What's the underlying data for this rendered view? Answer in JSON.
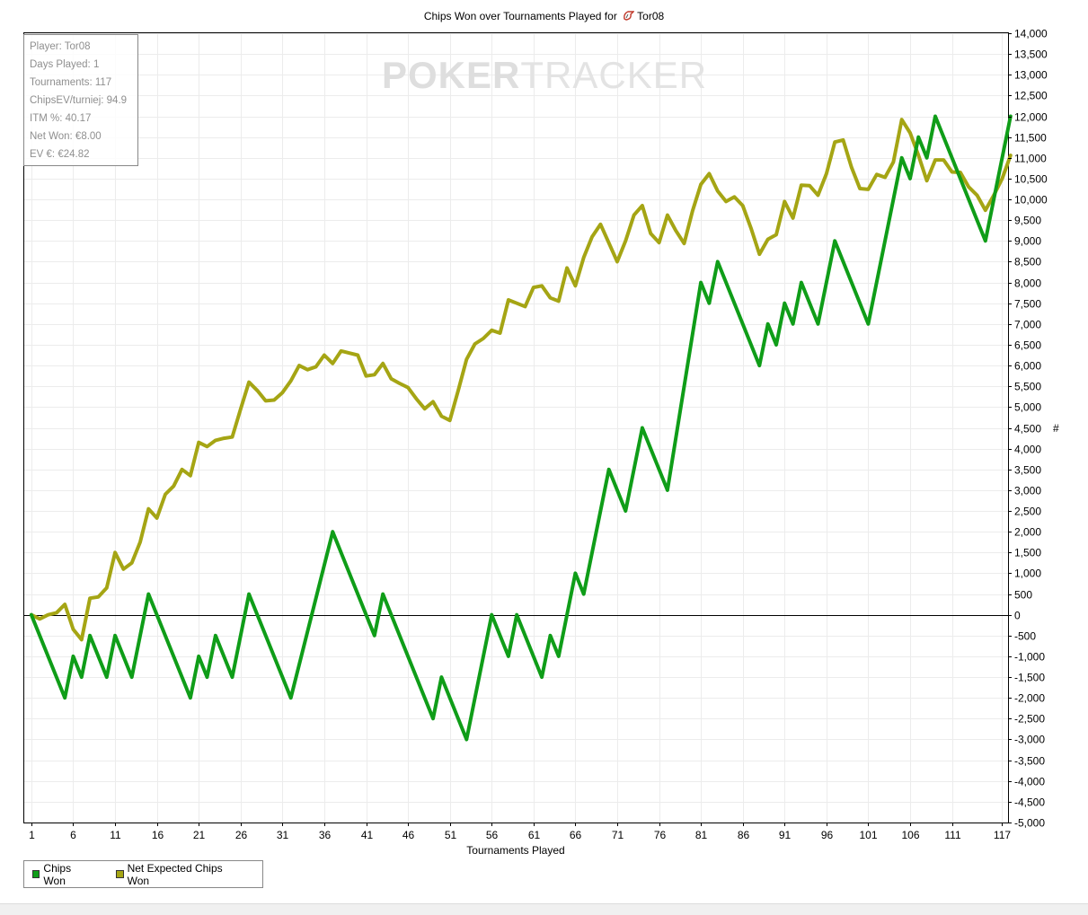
{
  "title": {
    "prefix": "Chips Won over Tournaments Played for",
    "player": "Tor08",
    "icon": "pokerstars-logo-icon"
  },
  "watermark": {
    "part1": "POKER",
    "part2": "TRACKER"
  },
  "stats": [
    "Player: Tor08",
    "Days Played: 1",
    "Tournaments: 117",
    "ChipsEV/turniej: 94.9",
    "ITM %: 40.17",
    "Net Won: €8.00",
    "EV €: €24.82"
  ],
  "legend": [
    {
      "label": "Chips Won",
      "color": "#0f9d18"
    },
    {
      "label": "Net Expected Chips Won",
      "color": "#a5a514"
    }
  ],
  "chart_data": {
    "type": "line",
    "title": "Chips Won over Tournaments Played for Tor08",
    "xlabel": "Tournaments Played",
    "ylabel": "#",
    "xlim": [
      1,
      117
    ],
    "ylim": [
      -5000,
      14000
    ],
    "x_ticks": [
      1,
      6,
      11,
      16,
      21,
      26,
      31,
      36,
      41,
      46,
      51,
      56,
      61,
      66,
      71,
      76,
      81,
      86,
      91,
      96,
      101,
      106,
      111,
      117
    ],
    "y_ticks": [
      -5000,
      -4500,
      -4000,
      -3500,
      -3000,
      -2500,
      -2000,
      -1500,
      -1000,
      -500,
      0,
      500,
      1000,
      1500,
      2000,
      2500,
      3000,
      3500,
      4000,
      4500,
      5000,
      5500,
      6000,
      6500,
      7000,
      7500,
      8000,
      8500,
      9000,
      9500,
      10000,
      10500,
      11000,
      11500,
      12000,
      12500,
      13000,
      13500,
      14000
    ],
    "y_tick_labels": [
      "-5,000",
      "-4,500",
      "-4,000",
      "-3,500",
      "-3,000",
      "-2,500",
      "-2,000",
      "-1,500",
      "-1,000",
      "-500",
      "0",
      "500",
      "1,000",
      "1,500",
      "2,000",
      "2,500",
      "3,000",
      "3,500",
      "4,000",
      "4,500",
      "5,000",
      "5,500",
      "6,000",
      "6,500",
      "7,000",
      "7,500",
      "8,000",
      "8,500",
      "9,000",
      "9,500",
      "10,000",
      "10,500",
      "11,000",
      "11,500",
      "12,000",
      "12,500",
      "13,000",
      "13,500",
      "14,000"
    ],
    "grid": true,
    "legend_position": "bottom-left",
    "series": [
      {
        "name": "Chips Won",
        "color": "#0f9d18",
        "points": [
          [
            1,
            0
          ],
          [
            5,
            -2000
          ],
          [
            6,
            -1000
          ],
          [
            7,
            -1500
          ],
          [
            8,
            -500
          ],
          [
            10,
            -1500
          ],
          [
            11,
            -500
          ],
          [
            13,
            -1500
          ],
          [
            15,
            500
          ],
          [
            20,
            -2000
          ],
          [
            21,
            -1000
          ],
          [
            22,
            -1500
          ],
          [
            23,
            -500
          ],
          [
            25,
            -1500
          ],
          [
            27,
            500
          ],
          [
            32,
            -2000
          ],
          [
            37,
            2000
          ],
          [
            42,
            -500
          ],
          [
            43,
            500
          ],
          [
            49,
            -2500
          ],
          [
            50,
            -1500
          ],
          [
            53,
            -3000
          ],
          [
            56,
            0
          ],
          [
            58,
            -1000
          ],
          [
            59,
            0
          ],
          [
            62,
            -1500
          ],
          [
            63,
            -500
          ],
          [
            64,
            -1000
          ],
          [
            66,
            1000
          ],
          [
            67,
            500
          ],
          [
            70,
            3500
          ],
          [
            72,
            2500
          ],
          [
            74,
            4500
          ],
          [
            77,
            3000
          ],
          [
            81,
            8000
          ],
          [
            82,
            7500
          ],
          [
            83,
            8500
          ],
          [
            88,
            6000
          ],
          [
            89,
            7000
          ],
          [
            90,
            6500
          ],
          [
            91,
            7500
          ],
          [
            92,
            7000
          ],
          [
            93,
            8000
          ],
          [
            95,
            7000
          ],
          [
            97,
            9000
          ],
          [
            101,
            7000
          ],
          [
            105,
            11000
          ],
          [
            106,
            10500
          ],
          [
            107,
            11500
          ],
          [
            108,
            11000
          ],
          [
            109,
            12000
          ],
          [
            115,
            9000
          ],
          [
            118,
            12000
          ]
        ]
      },
      {
        "name": "Net Expected Chips Won",
        "color": "#a5a514",
        "points": [
          [
            1,
            0
          ],
          [
            2,
            -100
          ],
          [
            3,
            0
          ],
          [
            4,
            50
          ],
          [
            5,
            250
          ],
          [
            6,
            -350
          ],
          [
            7,
            -600
          ],
          [
            8,
            400
          ],
          [
            9,
            430
          ],
          [
            10,
            650
          ],
          [
            11,
            1500
          ],
          [
            12,
            1100
          ],
          [
            13,
            1250
          ],
          [
            14,
            1750
          ],
          [
            15,
            2550
          ],
          [
            16,
            2330
          ],
          [
            17,
            2900
          ],
          [
            18,
            3100
          ],
          [
            19,
            3500
          ],
          [
            20,
            3350
          ],
          [
            21,
            4150
          ],
          [
            22,
            4050
          ],
          [
            23,
            4200
          ],
          [
            24,
            4250
          ],
          [
            25,
            4280
          ],
          [
            26,
            4950
          ],
          [
            27,
            5600
          ],
          [
            28,
            5400
          ],
          [
            29,
            5150
          ],
          [
            30,
            5170
          ],
          [
            31,
            5350
          ],
          [
            32,
            5630
          ],
          [
            33,
            6000
          ],
          [
            34,
            5900
          ],
          [
            35,
            5970
          ],
          [
            36,
            6250
          ],
          [
            37,
            6050
          ],
          [
            38,
            6350
          ],
          [
            39,
            6300
          ],
          [
            40,
            6250
          ],
          [
            41,
            5750
          ],
          [
            42,
            5780
          ],
          [
            43,
            6050
          ],
          [
            44,
            5680
          ],
          [
            45,
            5570
          ],
          [
            46,
            5470
          ],
          [
            47,
            5200
          ],
          [
            48,
            4960
          ],
          [
            49,
            5130
          ],
          [
            50,
            4780
          ],
          [
            51,
            4680
          ],
          [
            52,
            5400
          ],
          [
            53,
            6150
          ],
          [
            54,
            6520
          ],
          [
            55,
            6650
          ],
          [
            56,
            6850
          ],
          [
            57,
            6780
          ],
          [
            58,
            7580
          ],
          [
            59,
            7500
          ],
          [
            60,
            7420
          ],
          [
            61,
            7880
          ],
          [
            62,
            7920
          ],
          [
            63,
            7630
          ],
          [
            64,
            7550
          ],
          [
            65,
            8350
          ],
          [
            66,
            7920
          ],
          [
            67,
            8600
          ],
          [
            68,
            9100
          ],
          [
            69,
            9400
          ],
          [
            70,
            8950
          ],
          [
            71,
            8500
          ],
          [
            72,
            9000
          ],
          [
            73,
            9620
          ],
          [
            74,
            9850
          ],
          [
            75,
            9180
          ],
          [
            76,
            8960
          ],
          [
            77,
            9620
          ],
          [
            78,
            9250
          ],
          [
            79,
            8940
          ],
          [
            80,
            9720
          ],
          [
            81,
            10360
          ],
          [
            82,
            10620
          ],
          [
            83,
            10200
          ],
          [
            84,
            9950
          ],
          [
            85,
            10060
          ],
          [
            86,
            9850
          ],
          [
            87,
            9300
          ],
          [
            88,
            8680
          ],
          [
            89,
            9040
          ],
          [
            90,
            9150
          ],
          [
            91,
            9950
          ],
          [
            92,
            9550
          ],
          [
            93,
            10340
          ],
          [
            94,
            10330
          ],
          [
            95,
            10100
          ],
          [
            96,
            10620
          ],
          [
            97,
            11380
          ],
          [
            98,
            11430
          ],
          [
            99,
            10770
          ],
          [
            100,
            10260
          ],
          [
            101,
            10240
          ],
          [
            102,
            10600
          ],
          [
            103,
            10530
          ],
          [
            104,
            10900
          ],
          [
            105,
            11920
          ],
          [
            106,
            11600
          ],
          [
            107,
            11060
          ],
          [
            108,
            10450
          ],
          [
            109,
            10950
          ],
          [
            110,
            10950
          ],
          [
            111,
            10660
          ],
          [
            112,
            10650
          ],
          [
            113,
            10300
          ],
          [
            114,
            10100
          ],
          [
            115,
            9740
          ],
          [
            116,
            10100
          ],
          [
            117,
            10500
          ],
          [
            118,
            11060
          ]
        ]
      }
    ]
  }
}
